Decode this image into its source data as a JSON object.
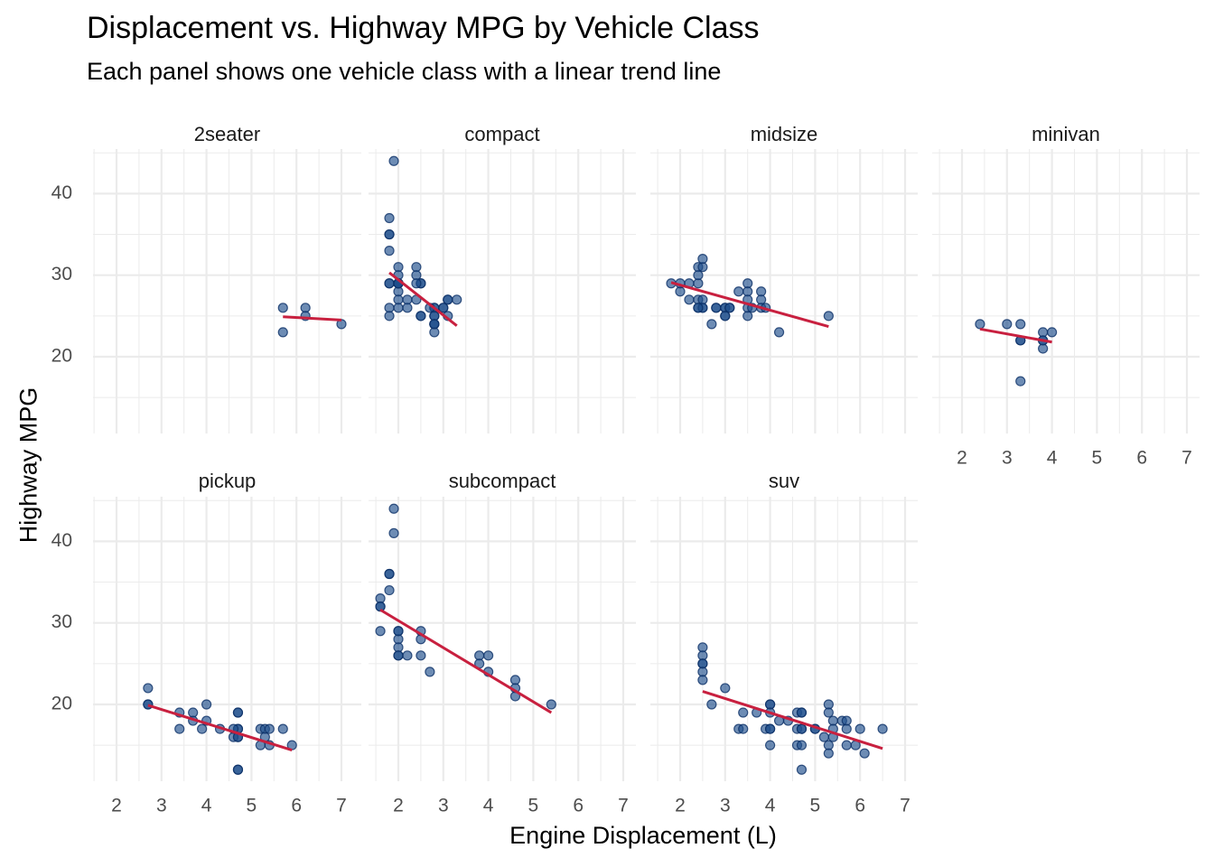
{
  "chart_data": {
    "type": "scatter",
    "title": "Displacement vs. Highway MPG by Vehicle Class",
    "subtitle": "Each panel shows one vehicle class with a linear trend line",
    "xlabel": "Engine Displacement (L)",
    "ylabel": "Highway MPG",
    "xlim": [
      1.5,
      7.2
    ],
    "ylim": [
      10.5,
      45.5
    ],
    "x_ticks": [
      2,
      3,
      4,
      5,
      6,
      7
    ],
    "y_ticks": [
      20,
      30,
      40
    ],
    "grid": true,
    "facet_layout": "4 columns x 2 rows",
    "colors": {
      "point": "#1f4e8c",
      "point_outline": "#0b2f66",
      "trend": "#c8203f",
      "grid": "#ebebeb",
      "text": "#4d4d4d"
    },
    "panels": [
      {
        "name": "2seater",
        "points": [
          [
            5.7,
            26
          ],
          [
            5.7,
            23
          ],
          [
            6.2,
            26
          ],
          [
            6.2,
            25
          ],
          [
            7.0,
            24
          ]
        ],
        "trend": [
          [
            5.7,
            24.9
          ],
          [
            7.0,
            24.5
          ]
        ]
      },
      {
        "name": "compact",
        "points": [
          [
            1.8,
            29
          ],
          [
            1.8,
            29
          ],
          [
            2.0,
            31
          ],
          [
            2.0,
            30
          ],
          [
            2.8,
            26
          ],
          [
            2.8,
            26
          ],
          [
            3.1,
            27
          ],
          [
            1.8,
            26
          ],
          [
            1.8,
            25
          ],
          [
            2.0,
            28
          ],
          [
            2.0,
            27
          ],
          [
            2.8,
            25
          ],
          [
            2.8,
            25
          ],
          [
            3.1,
            27
          ],
          [
            3.1,
            25
          ],
          [
            2.2,
            27
          ],
          [
            2.2,
            26
          ],
          [
            2.4,
            31
          ],
          [
            2.4,
            30
          ],
          [
            3.0,
            26
          ],
          [
            3.0,
            26
          ],
          [
            3.3,
            27
          ],
          [
            1.8,
            37
          ],
          [
            1.8,
            35
          ],
          [
            1.8,
            33
          ],
          [
            1.8,
            35
          ],
          [
            1.9,
            44
          ],
          [
            2.0,
            29
          ],
          [
            2.0,
            26
          ],
          [
            2.5,
            29
          ],
          [
            2.5,
            29
          ],
          [
            2.8,
            24
          ],
          [
            2.8,
            24
          ],
          [
            2.0,
            29
          ],
          [
            2.0,
            29
          ],
          [
            2.5,
            25
          ],
          [
            2.5,
            25
          ],
          [
            2.8,
            23
          ],
          [
            2.8,
            24
          ],
          [
            2.4,
            27
          ],
          [
            2.0,
            29
          ],
          [
            2.0,
            29
          ],
          [
            2.4,
            29
          ],
          [
            2.7,
            26
          ]
        ],
        "trend": [
          [
            1.8,
            30.3
          ],
          [
            3.3,
            23.8
          ]
        ]
      },
      {
        "name": "midsize",
        "points": [
          [
            2.4,
            29
          ],
          [
            2.4,
            31
          ],
          [
            2.5,
            31
          ],
          [
            2.5,
            32
          ],
          [
            2.4,
            30
          ],
          [
            1.8,
            29
          ],
          [
            2.2,
            29
          ],
          [
            2.0,
            28
          ],
          [
            2.0,
            29
          ],
          [
            2.4,
            27
          ],
          [
            2.2,
            27
          ],
          [
            2.4,
            26
          ],
          [
            2.5,
            26
          ],
          [
            2.5,
            27
          ],
          [
            2.8,
            26
          ],
          [
            2.7,
            24
          ],
          [
            3.0,
            26
          ],
          [
            3.0,
            26
          ],
          [
            3.1,
            26
          ],
          [
            3.0,
            25
          ],
          [
            3.5,
            29
          ],
          [
            3.5,
            28
          ],
          [
            3.5,
            27
          ],
          [
            3.5,
            26
          ],
          [
            3.3,
            28
          ],
          [
            3.5,
            25
          ],
          [
            3.8,
            28
          ],
          [
            3.8,
            27
          ],
          [
            3.8,
            26
          ],
          [
            3.6,
            26
          ],
          [
            4.2,
            23
          ],
          [
            5.3,
            25
          ],
          [
            2.5,
            26
          ],
          [
            2.4,
            26
          ],
          [
            3.0,
            25
          ],
          [
            3.1,
            26
          ],
          [
            3.9,
            26
          ],
          [
            2.8,
            26
          ]
        ],
        "trend": [
          [
            1.8,
            29.1
          ],
          [
            5.3,
            23.7
          ]
        ]
      },
      {
        "name": "minivan",
        "points": [
          [
            2.4,
            24
          ],
          [
            3.0,
            24
          ],
          [
            3.3,
            24
          ],
          [
            3.3,
            22
          ],
          [
            3.3,
            22
          ],
          [
            3.3,
            17
          ],
          [
            3.8,
            23
          ],
          [
            3.8,
            22
          ],
          [
            3.8,
            21
          ],
          [
            3.8,
            22
          ],
          [
            4.0,
            23
          ]
        ],
        "trend": [
          [
            2.4,
            23.4
          ],
          [
            4.0,
            21.8
          ]
        ]
      },
      {
        "name": "pickup",
        "points": [
          [
            2.7,
            22
          ],
          [
            2.7,
            20
          ],
          [
            2.7,
            20
          ],
          [
            3.4,
            19
          ],
          [
            3.4,
            17
          ],
          [
            3.7,
            19
          ],
          [
            3.7,
            18
          ],
          [
            3.9,
            17
          ],
          [
            4.0,
            20
          ],
          [
            4.0,
            18
          ],
          [
            4.3,
            17
          ],
          [
            4.7,
            17
          ],
          [
            4.7,
            19
          ],
          [
            4.7,
            16
          ],
          [
            4.7,
            12
          ],
          [
            4.7,
            17
          ],
          [
            4.6,
            16
          ],
          [
            4.6,
            17
          ],
          [
            5.2,
            17
          ],
          [
            5.2,
            15
          ],
          [
            5.3,
            17
          ],
          [
            5.3,
            16
          ],
          [
            5.4,
            17
          ],
          [
            5.4,
            15
          ],
          [
            5.7,
            17
          ],
          [
            5.9,
            15
          ],
          [
            4.7,
            19
          ],
          [
            4.7,
            16
          ],
          [
            4.7,
            12
          ]
        ],
        "trend": [
          [
            2.7,
            19.9
          ],
          [
            5.9,
            14.4
          ]
        ]
      },
      {
        "name": "subcompact",
        "points": [
          [
            1.6,
            33
          ],
          [
            1.6,
            32
          ],
          [
            1.6,
            32
          ],
          [
            1.6,
            29
          ],
          [
            1.8,
            36
          ],
          [
            1.8,
            34
          ],
          [
            1.8,
            36
          ],
          [
            1.9,
            44
          ],
          [
            1.9,
            41
          ],
          [
            2.0,
            29
          ],
          [
            2.0,
            28
          ],
          [
            2.0,
            27
          ],
          [
            2.0,
            26
          ],
          [
            2.0,
            29
          ],
          [
            2.2,
            26
          ],
          [
            2.5,
            29
          ],
          [
            2.5,
            28
          ],
          [
            2.5,
            26
          ],
          [
            2.7,
            24
          ],
          [
            3.8,
            26
          ],
          [
            3.8,
            25
          ],
          [
            4.0,
            26
          ],
          [
            4.0,
            24
          ],
          [
            4.6,
            23
          ],
          [
            4.6,
            22
          ],
          [
            4.6,
            21
          ],
          [
            5.4,
            20
          ],
          [
            2.0,
            26
          ]
        ],
        "trend": [
          [
            1.6,
            31.6
          ],
          [
            5.4,
            19.0
          ]
        ]
      },
      {
        "name": "suv",
        "points": [
          [
            2.5,
            27
          ],
          [
            2.5,
            26
          ],
          [
            2.5,
            25
          ],
          [
            2.5,
            25
          ],
          [
            2.5,
            24
          ],
          [
            2.5,
            23
          ],
          [
            2.7,
            20
          ],
          [
            3.0,
            22
          ],
          [
            3.3,
            17
          ],
          [
            3.4,
            17
          ],
          [
            3.4,
            19
          ],
          [
            3.7,
            19
          ],
          [
            3.9,
            17
          ],
          [
            4.0,
            20
          ],
          [
            4.0,
            20
          ],
          [
            4.0,
            19
          ],
          [
            4.0,
            17
          ],
          [
            4.0,
            17
          ],
          [
            4.0,
            15
          ],
          [
            4.2,
            18
          ],
          [
            4.4,
            18
          ],
          [
            4.6,
            19
          ],
          [
            4.6,
            17
          ],
          [
            4.6,
            15
          ],
          [
            4.7,
            19
          ],
          [
            4.7,
            17
          ],
          [
            4.7,
            17
          ],
          [
            4.7,
            15
          ],
          [
            4.7,
            12
          ],
          [
            4.7,
            19
          ],
          [
            5.0,
            17
          ],
          [
            5.0,
            17
          ],
          [
            5.2,
            16
          ],
          [
            5.3,
            20
          ],
          [
            5.3,
            19
          ],
          [
            5.3,
            15
          ],
          [
            5.3,
            14
          ],
          [
            5.4,
            18
          ],
          [
            5.4,
            17
          ],
          [
            5.4,
            16
          ],
          [
            5.6,
            18
          ],
          [
            5.7,
            18
          ],
          [
            5.7,
            17
          ],
          [
            5.7,
            15
          ],
          [
            5.9,
            15
          ],
          [
            6.0,
            17
          ],
          [
            6.1,
            14
          ],
          [
            6.5,
            17
          ]
        ],
        "trend": [
          [
            2.5,
            21.6
          ],
          [
            6.5,
            14.6
          ]
        ]
      }
    ]
  }
}
